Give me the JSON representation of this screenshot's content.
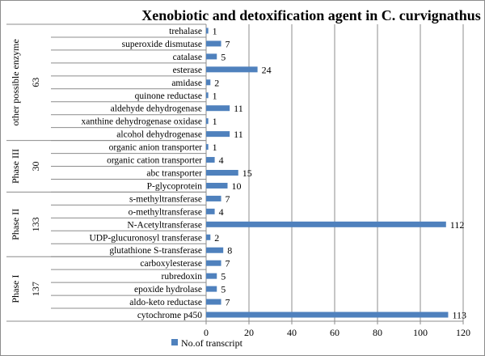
{
  "chart_data": {
    "type": "bar",
    "orientation": "horizontal",
    "title": "Xenobiotic and detoxification agent in C. curvignathus",
    "xlim": [
      0,
      120
    ],
    "x_ticks": [
      0,
      20,
      40,
      60,
      80,
      100,
      120
    ],
    "grid": true,
    "legend_position": "bottom-left",
    "bar_color": "#4F81BD",
    "series": [
      {
        "name": "No.of transcript"
      }
    ],
    "groups": [
      {
        "name": "other possible enzyme",
        "total": "63",
        "items": [
          {
            "label": "trehalase",
            "value": 1
          },
          {
            "label": "superoxide dismutase",
            "value": 7
          },
          {
            "label": "catalase",
            "value": 5
          },
          {
            "label": "esterase",
            "value": 24
          },
          {
            "label": "amidase",
            "value": 2
          },
          {
            "label": "quinone reductase",
            "value": 1
          },
          {
            "label": "aldehyde dehydrogenase",
            "value": 11
          },
          {
            "label": "xanthine dehydrogenase oxidase",
            "value": 1
          },
          {
            "label": "alcohol dehydrogenase",
            "value": 11
          }
        ]
      },
      {
        "name": "Phase III",
        "total": "30",
        "items": [
          {
            "label": "organic anion transporter",
            "value": 1
          },
          {
            "label": "organic cation transporter",
            "value": 4
          },
          {
            "label": "abc transporter",
            "value": 15
          },
          {
            "label": "P-glycoprotein",
            "value": 10
          }
        ]
      },
      {
        "name": "Phase II",
        "total": "133",
        "items": [
          {
            "label": "s-methyltransferase",
            "value": 7
          },
          {
            "label": "o-methyltransferase",
            "value": 4
          },
          {
            "label": "N-Acetyltransferase",
            "value": 112
          },
          {
            "label": "UDP-glucuronosyl transferase",
            "value": 2
          },
          {
            "label": "glutathione S-transferase",
            "value": 8
          }
        ]
      },
      {
        "name": "Phase I",
        "total": "137",
        "items": [
          {
            "label": "carboxylesterase",
            "value": 7
          },
          {
            "label": "rubredoxin",
            "value": 5
          },
          {
            "label": "epoxide hydrolase",
            "value": 5
          },
          {
            "label": "aldo-keto reductase",
            "value": 7
          },
          {
            "label": "cytochrome p450",
            "value": 113
          }
        ]
      }
    ]
  }
}
